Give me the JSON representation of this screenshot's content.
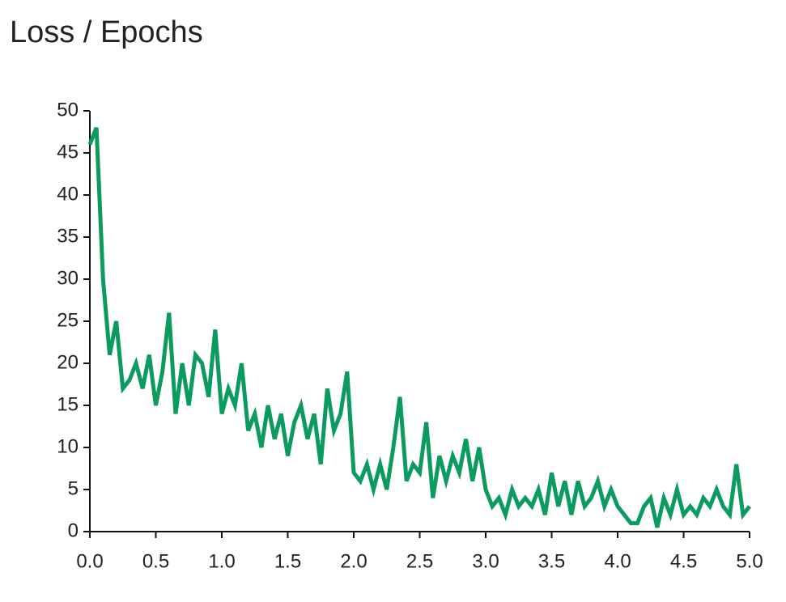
{
  "chart_data": {
    "type": "line",
    "title": "Loss / Epochs",
    "x": [
      0,
      0.05,
      0.1,
      0.15,
      0.2,
      0.25,
      0.3,
      0.35,
      0.4,
      0.45,
      0.5,
      0.55,
      0.6,
      0.65,
      0.7,
      0.75,
      0.8,
      0.85,
      0.9,
      0.95,
      1.0,
      1.05,
      1.1,
      1.15,
      1.2,
      1.25,
      1.3,
      1.35,
      1.4,
      1.45,
      1.5,
      1.55,
      1.6,
      1.65,
      1.7,
      1.75,
      1.8,
      1.85,
      1.9,
      1.95,
      2.0,
      2.05,
      2.1,
      2.15,
      2.2,
      2.25,
      2.3,
      2.35,
      2.4,
      2.45,
      2.5,
      2.55,
      2.6,
      2.65,
      2.7,
      2.75,
      2.8,
      2.85,
      2.9,
      2.95,
      3.0,
      3.05,
      3.1,
      3.15,
      3.2,
      3.25,
      3.3,
      3.35,
      3.4,
      3.45,
      3.5,
      3.55,
      3.6,
      3.65,
      3.7,
      3.75,
      3.8,
      3.85,
      3.9,
      3.95,
      4.0,
      4.05,
      4.1,
      4.15,
      4.2,
      4.25,
      4.3,
      4.35,
      4.4,
      4.45,
      4.5,
      4.55,
      4.6,
      4.65,
      4.7,
      4.75,
      4.8,
      4.85,
      4.9,
      4.95,
      5.0
    ],
    "series": [
      {
        "color": "#0b9b5e",
        "values": [
          46,
          48,
          30,
          21,
          25,
          17,
          18,
          20,
          17,
          21,
          15,
          19,
          26,
          14,
          20,
          15,
          21,
          20,
          16,
          24,
          14,
          17,
          15,
          20,
          12,
          14,
          10,
          15,
          11,
          14,
          9,
          13,
          15,
          11,
          14,
          8,
          17,
          12,
          14,
          19,
          7,
          6,
          8,
          5,
          8,
          5,
          10,
          16,
          6,
          8,
          7,
          13,
          4,
          9,
          6,
          9,
          7,
          11,
          6,
          10,
          5,
          3,
          4,
          2,
          5,
          3,
          4,
          3,
          5,
          2,
          7,
          3,
          6,
          2,
          6,
          3,
          4,
          6,
          3,
          5,
          3,
          2,
          1,
          1,
          3,
          4,
          0.5,
          4,
          2,
          5,
          2,
          3,
          2,
          4,
          3,
          5,
          3,
          2,
          8,
          2,
          3
        ]
      }
    ],
    "xlim": [
      0,
      5
    ],
    "ylim": [
      0,
      50
    ],
    "xticks": [
      {
        "value": 0,
        "label": "0.0"
      },
      0.5,
      {
        "value": 1,
        "label": "1.0"
      },
      1.5,
      {
        "value": 2,
        "label": "2.0"
      },
      2.5,
      {
        "value": 3,
        "label": "3.0"
      },
      3.5,
      {
        "value": 4,
        "label": "4.0"
      },
      4.5,
      {
        "value": 5,
        "label": "5.0"
      }
    ],
    "yticks": [
      0,
      5,
      10,
      15,
      20,
      25,
      30,
      35,
      40,
      45,
      50
    ],
    "grid": false
  }
}
